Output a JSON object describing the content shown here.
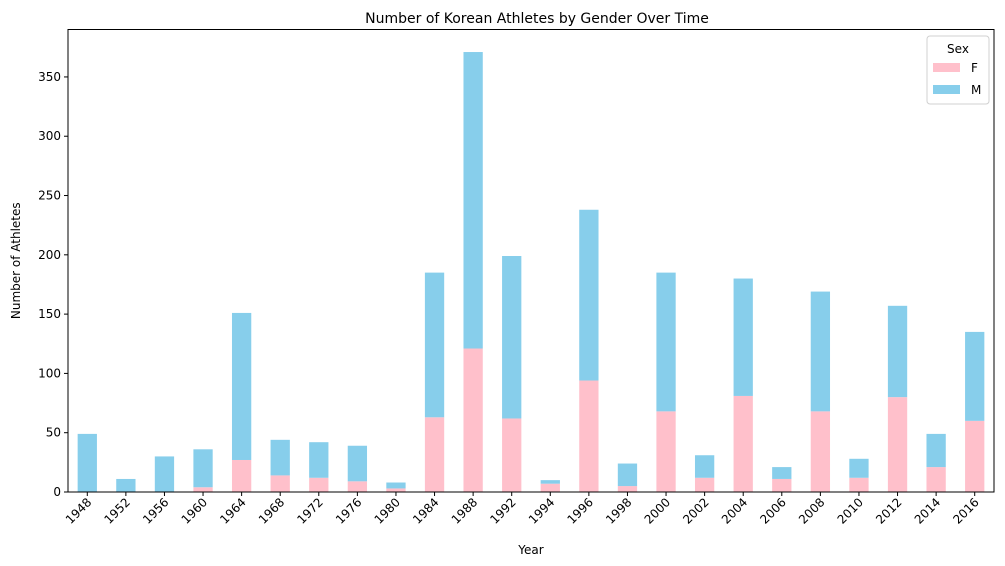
{
  "chart_data": {
    "type": "bar",
    "stacked": true,
    "title": "Number of Korean Athletes by Gender Over Time",
    "xlabel": "Year",
    "ylabel": "Number of Athletes",
    "ylim": [
      0,
      390
    ],
    "yticks": [
      0,
      50,
      100,
      150,
      200,
      250,
      300,
      350
    ],
    "categories": [
      "1948",
      "1952",
      "1956",
      "1960",
      "1964",
      "1968",
      "1972",
      "1976",
      "1980",
      "1984",
      "1988",
      "1992",
      "1994",
      "1996",
      "1998",
      "2000",
      "2002",
      "2004",
      "2006",
      "2008",
      "2010",
      "2012",
      "2014",
      "2016"
    ],
    "series": [
      {
        "name": "F",
        "color": "#ffc0cb",
        "values": [
          0,
          0,
          0,
          4,
          27,
          14,
          12,
          9,
          3,
          63,
          121,
          62,
          7,
          94,
          5,
          68,
          12,
          81,
          11,
          68,
          12,
          80,
          21,
          60
        ]
      },
      {
        "name": "M",
        "color": "#87ceeb",
        "values": [
          49,
          11,
          30,
          32,
          124,
          30,
          30,
          30,
          5,
          122,
          250,
          137,
          3,
          144,
          19,
          117,
          19,
          99,
          10,
          101,
          16,
          77,
          28,
          75
        ]
      }
    ],
    "legend": {
      "title": "Sex",
      "placement": "top-right"
    },
    "grid": false
  }
}
